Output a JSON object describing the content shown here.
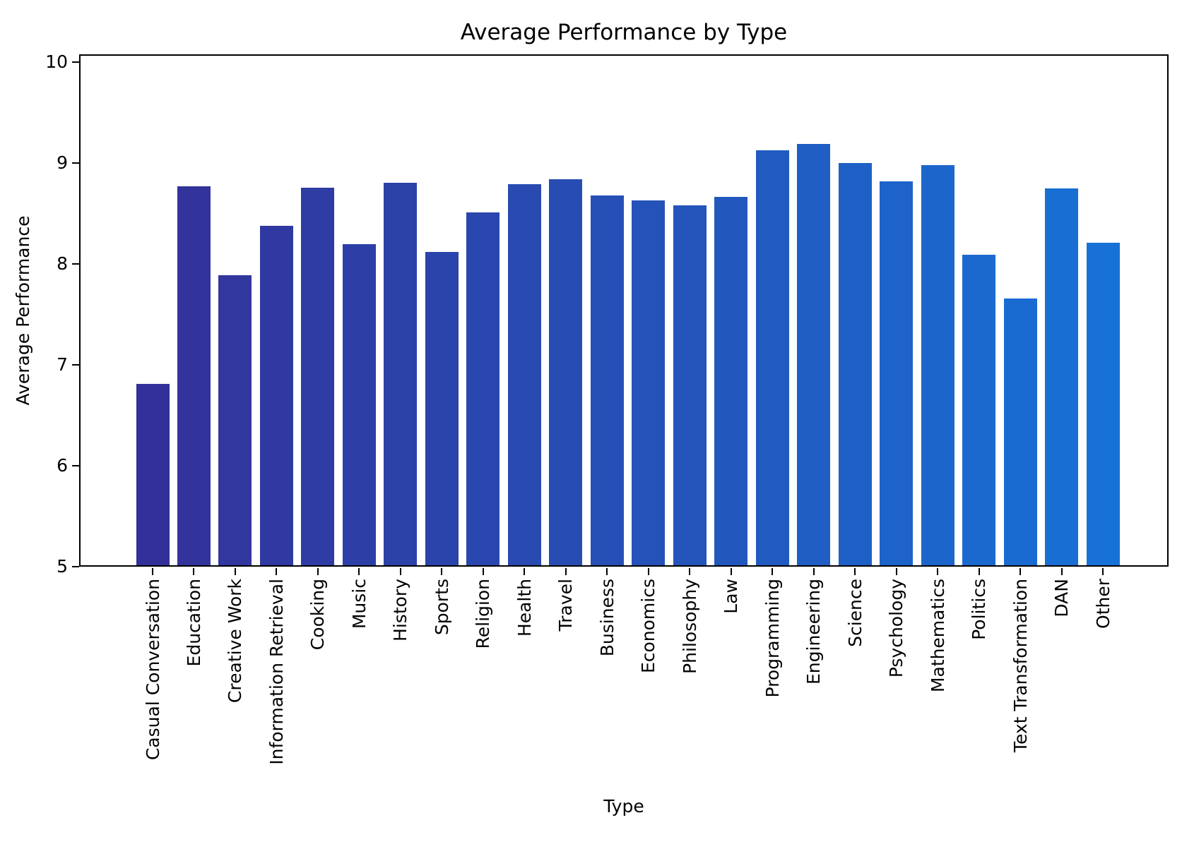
{
  "title": "Average Performance by Type",
  "axes": {
    "xlabel": "Type",
    "ylabel": "Average Performance"
  },
  "chart_data": {
    "type": "bar",
    "title": "Average Performance by Type",
    "xlabel": "Type",
    "ylabel": "Average Performance",
    "categories": [
      "Casual Conversation",
      "Education",
      "Creative Work",
      "Information Retrieval",
      "Cooking",
      "Music",
      "History",
      "Sports",
      "Religion",
      "Health",
      "Travel",
      "Business",
      "Economics",
      "Philosophy",
      "Law",
      "Programming",
      "Engineering",
      "Science",
      "Psychology",
      "Mathematics",
      "Politics",
      "Text Transformation",
      "DAN",
      "Other"
    ],
    "values": [
      6.81,
      8.77,
      7.89,
      8.38,
      8.76,
      8.2,
      8.81,
      8.12,
      8.51,
      8.79,
      8.84,
      8.68,
      8.63,
      8.58,
      8.67,
      9.13,
      9.19,
      9.0,
      8.82,
      8.98,
      8.09,
      7.66,
      8.75,
      8.21
    ],
    "ylim": [
      5,
      10.08
    ],
    "yticks": [
      5,
      6,
      7,
      8,
      9,
      10
    ],
    "grid": false,
    "legend": null,
    "bar_color_start": "#333199",
    "bar_color_end": "#1771d6",
    "axis_color": "#000000",
    "background": "#ffffff"
  }
}
